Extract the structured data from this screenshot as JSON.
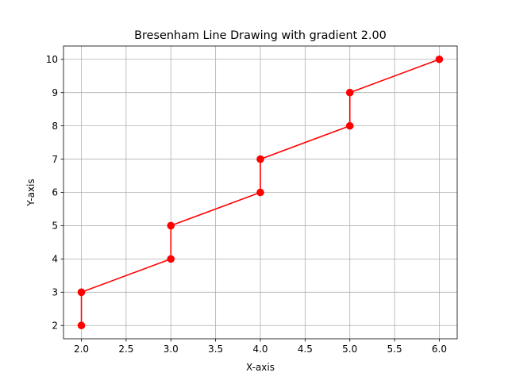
{
  "chart_data": {
    "type": "line",
    "title": "Bresenham Line Drawing with gradient 2.00",
    "xlabel": "X-axis",
    "ylabel": "Y-axis",
    "xlim": [
      1.8,
      6.2
    ],
    "ylim": [
      1.6,
      10.4
    ],
    "xticks": [
      2.0,
      2.5,
      3.0,
      3.5,
      4.0,
      4.5,
      5.0,
      5.5,
      6.0
    ],
    "xtick_labels": [
      "2.0",
      "2.5",
      "3.0",
      "3.5",
      "4.0",
      "4.5",
      "5.0",
      "5.5",
      "6.0"
    ],
    "yticks": [
      2,
      3,
      4,
      5,
      6,
      7,
      8,
      9,
      10
    ],
    "ytick_labels": [
      "2",
      "3",
      "4",
      "5",
      "6",
      "7",
      "8",
      "9",
      "10"
    ],
    "grid": true,
    "series": [
      {
        "color": "#ff0000",
        "marker": "circle",
        "x": [
          2,
          2,
          3,
          3,
          4,
          4,
          5,
          5,
          6
        ],
        "y": [
          2,
          3,
          4,
          5,
          6,
          7,
          8,
          9,
          10
        ]
      }
    ]
  },
  "colors": {
    "series": "#ff0000",
    "grid": "#b0b0b0",
    "axes": "#000000",
    "background": "#ffffff"
  }
}
